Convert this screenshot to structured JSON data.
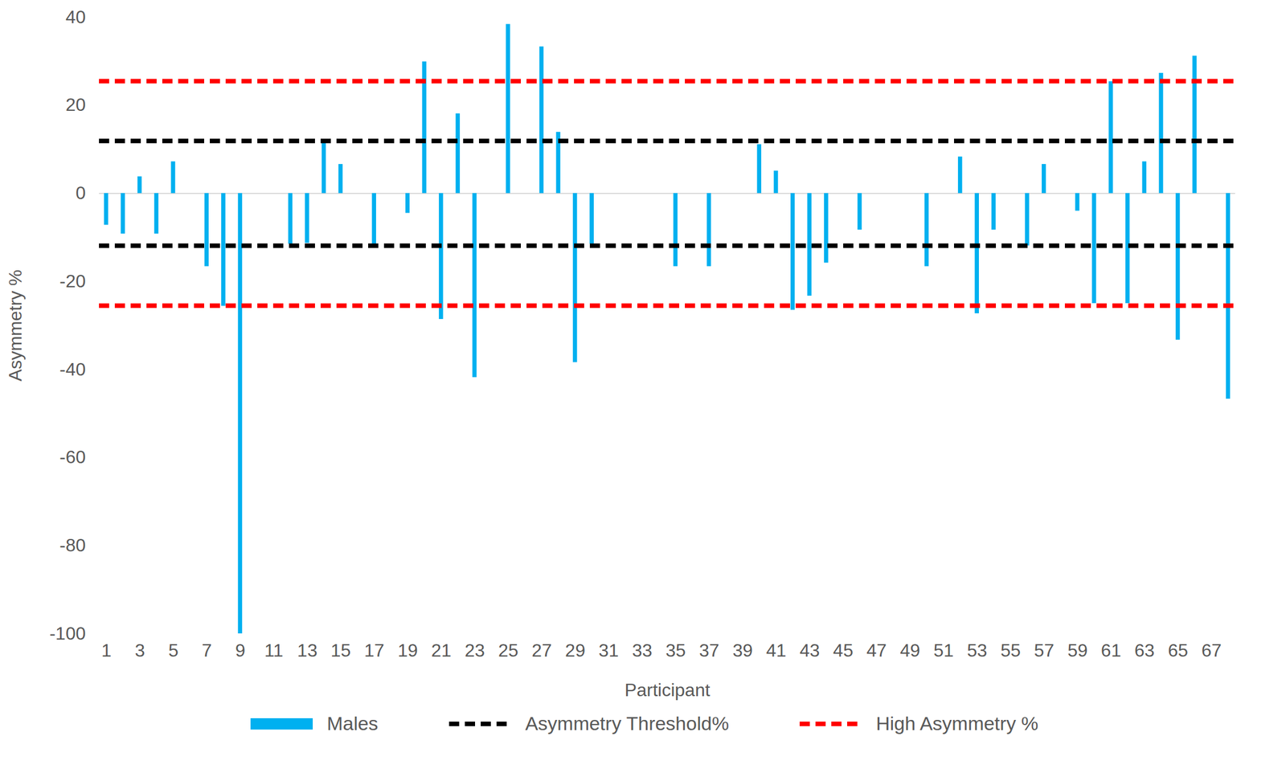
{
  "chart_data": {
    "type": "bar",
    "x_label": "Participant",
    "y_label": "Asymmetry %",
    "categories": [
      "1",
      null,
      "3",
      null,
      "5",
      null,
      "7",
      null,
      "9",
      null,
      "11",
      null,
      "13",
      null,
      "15",
      null,
      "17",
      null,
      "19",
      null,
      "21",
      null,
      "23",
      null,
      "25",
      null,
      "27",
      null,
      "29",
      null,
      "31",
      null,
      "33",
      null,
      "35",
      null,
      "37",
      null,
      "39",
      null,
      "41",
      null,
      "43",
      null,
      "45",
      null,
      "47",
      null,
      "49",
      null,
      "51",
      null,
      "53",
      null,
      "55",
      null,
      "57",
      null,
      "59",
      null,
      "61",
      null,
      "63",
      null,
      "65",
      null,
      "67",
      null
    ],
    "series": [
      {
        "name": "Males",
        "type": "bar",
        "color": "#00b0f0",
        "values": [
          -7.2,
          -9.2,
          3.8,
          -9.2,
          7.2,
          0,
          -16.6,
          -25.6,
          -100,
          0,
          0,
          -11.5,
          -11.3,
          11.9,
          6.6,
          0,
          -11.5,
          0,
          -4.5,
          29.9,
          -28.6,
          18.1,
          -41.8,
          0,
          38.4,
          0,
          33.3,
          13.9,
          -38.4,
          -11.5,
          0,
          0,
          0,
          0,
          -16.6,
          0,
          -16.6,
          0,
          0,
          11.1,
          5.1,
          -26.5,
          -23.3,
          -15.8,
          0,
          -8.3,
          0,
          0,
          0,
          -16.6,
          0,
          8.3,
          -27.3,
          -8.3,
          0,
          -11.9,
          6.6,
          0,
          -4,
          -25,
          25.4,
          -25,
          7.2,
          27.3,
          -33.3,
          31.2,
          0,
          -46.7
        ]
      },
      {
        "name": "Asymmetry Threshold%",
        "type": "rule",
        "color": "#000000",
        "line_style": "dashed",
        "levels": [
          11.9,
          -11.9
        ]
      },
      {
        "name": "High Asymmetry %",
        "type": "rule",
        "color": "#ff0000",
        "line_style": "dashed",
        "levels": [
          25.5,
          -25.5
        ]
      }
    ],
    "ylim": [
      -100,
      40
    ],
    "yticks": [
      -100,
      -80,
      -60,
      -40,
      -20,
      0,
      20,
      40
    ],
    "grid": false,
    "legend": "bottom"
  }
}
